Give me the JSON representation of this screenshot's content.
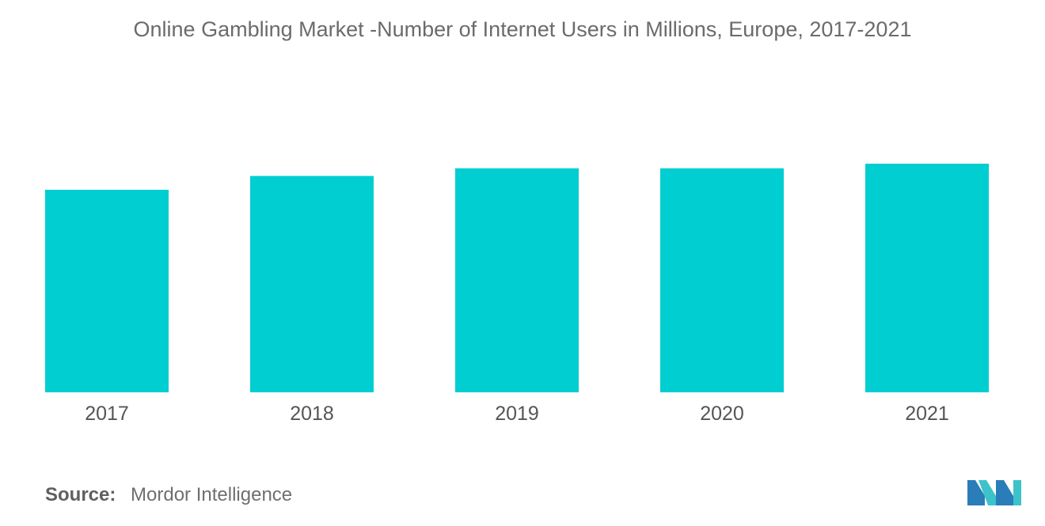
{
  "chart_data": {
    "type": "bar",
    "title": "Online Gambling Market -Number of Internet Users in Millions, Europe, 2017-2021",
    "categories": [
      "2017",
      "2018",
      "2019",
      "2020",
      "2021"
    ],
    "values": [
      66.0,
      70.5,
      73.0,
      73.0,
      74.5
    ],
    "xlabel": "",
    "ylabel": "",
    "ylim": [
      0,
      100
    ],
    "grid": false,
    "legend": "none",
    "bar_color": "#00CED1"
  },
  "source": {
    "label": "Source:",
    "text": "Mordor Intelligence"
  },
  "logo": {
    "icon": "mordor-intelligence-logo",
    "colors": [
      "#2a7db8",
      "#3cc3c9"
    ]
  }
}
